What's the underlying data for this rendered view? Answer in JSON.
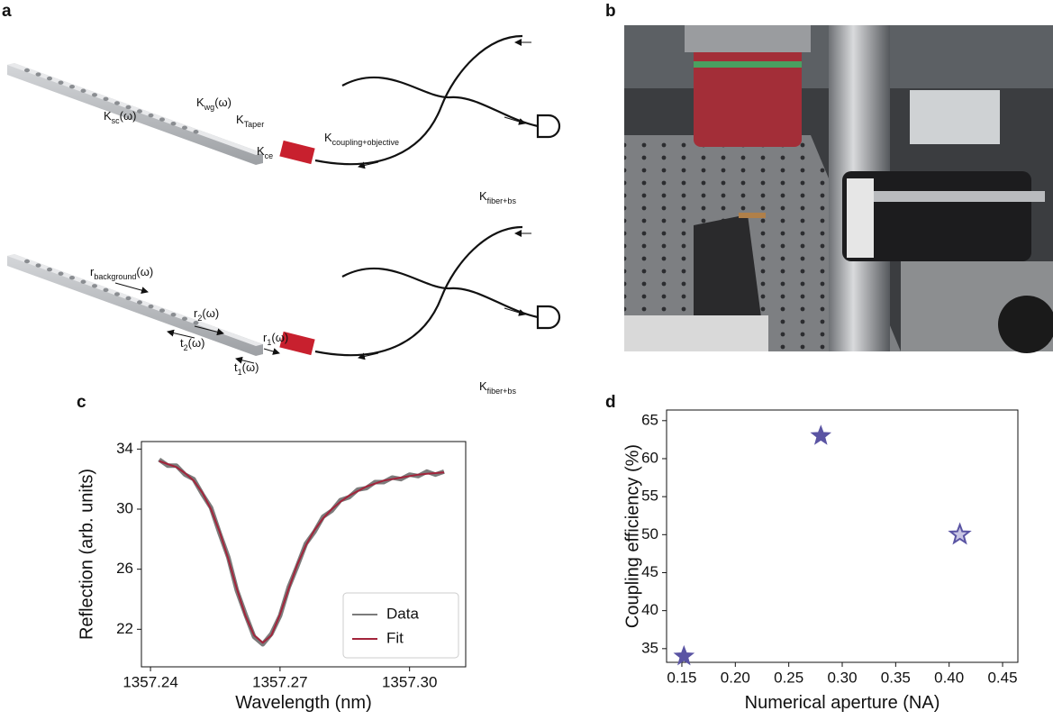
{
  "panels": {
    "labels": [
      "a",
      "b",
      "c",
      "d"
    ]
  },
  "panel_a": {
    "labels": [
      {
        "main": "K",
        "sub": "sc",
        "tail": "(ω)"
      },
      {
        "main": "K",
        "sub": "wg",
        "tail": "(ω)"
      },
      {
        "main": "K",
        "sub": "Taper"
      },
      {
        "main": "K",
        "sub": "ce"
      },
      {
        "main": "K",
        "sub": "coupling+objective"
      },
      {
        "main": "K",
        "sub": "fiber+bs"
      },
      {
        "main": "r",
        "sub": "background",
        "tail": "(ω)"
      },
      {
        "main": "r",
        "sub": "2",
        "tail": "(ω)"
      },
      {
        "main": "t",
        "sub": "2",
        "tail": "(ω)"
      },
      {
        "main": "r",
        "sub": "1",
        "tail": "(ω)"
      },
      {
        "main": "t",
        "sub": "1",
        "tail": "(ω)"
      },
      {
        "main": "K",
        "sub": "fiber+bs"
      }
    ]
  },
  "chart_data": [
    {
      "type": "line",
      "x": [
        1357.242,
        1357.244,
        1357.246,
        1357.248,
        1357.25,
        1357.252,
        1357.254,
        1357.256,
        1357.258,
        1357.26,
        1357.262,
        1357.264,
        1357.266,
        1357.268,
        1357.27,
        1357.272,
        1357.274,
        1357.276,
        1357.278,
        1357.28,
        1357.282,
        1357.284,
        1357.286,
        1357.288,
        1357.29,
        1357.292,
        1357.294,
        1357.296,
        1357.298,
        1357.3,
        1357.302,
        1357.304,
        1357.306,
        1357.308
      ],
      "series": [
        {
          "name": "Data",
          "color": "#7b7b7b",
          "values": [
            33.3,
            32.9,
            32.9,
            32.3,
            32.0,
            31.0,
            30.1,
            28.4,
            26.8,
            24.6,
            23.0,
            21.5,
            21.0,
            21.7,
            22.9,
            24.8,
            26.2,
            27.7,
            28.5,
            29.5,
            29.9,
            30.6,
            30.8,
            31.3,
            31.4,
            31.8,
            31.8,
            32.1,
            32.0,
            32.3,
            32.2,
            32.5,
            32.3,
            32.5
          ]
        },
        {
          "name": "Fit",
          "color": "#a3243b",
          "values": [
            33.2,
            33.0,
            32.8,
            32.4,
            31.9,
            31.1,
            30.0,
            28.5,
            26.7,
            24.7,
            22.9,
            21.6,
            21.1,
            21.6,
            23.0,
            24.7,
            26.3,
            27.6,
            28.6,
            29.4,
            30.0,
            30.5,
            30.9,
            31.2,
            31.5,
            31.7,
            31.9,
            32.0,
            32.1,
            32.2,
            32.3,
            32.35,
            32.4,
            32.45
          ]
        }
      ],
      "xlabel": "Wavelength (nm)",
      "ylabel": "Reflection (arb. units)",
      "xlim": [
        1357.2379,
        1357.313
      ],
      "ylim": [
        19.5,
        34.5
      ],
      "xticks": [
        1357.24,
        1357.27,
        {
          "value": 1357.3,
          "label": "1357.30"
        }
      ],
      "yticks": [
        22,
        26,
        30,
        34
      ],
      "legend": "lower right"
    },
    {
      "type": "scatter",
      "x": [
        0.152,
        0.28,
        0.41
      ],
      "values": [
        34,
        63,
        50
      ],
      "color": "#5a54a3",
      "hollow": [
        false,
        false,
        true
      ],
      "xlabel": "Numerical aperture (NA)",
      "ylabel": "Coupling efficiency (%)",
      "xlim": [
        0.1357,
        0.4643
      ],
      "ylim": [
        33.2,
        66.4
      ],
      "xticks": [
        0.15,
        {
          "value": 0.2,
          "label": "0.20"
        },
        0.25,
        {
          "value": 0.3,
          "label": "0.30"
        },
        0.35,
        {
          "value": 0.4,
          "label": "0.40"
        },
        0.45
      ],
      "yticks": [
        35,
        40,
        45,
        50,
        55,
        60,
        65
      ]
    }
  ]
}
